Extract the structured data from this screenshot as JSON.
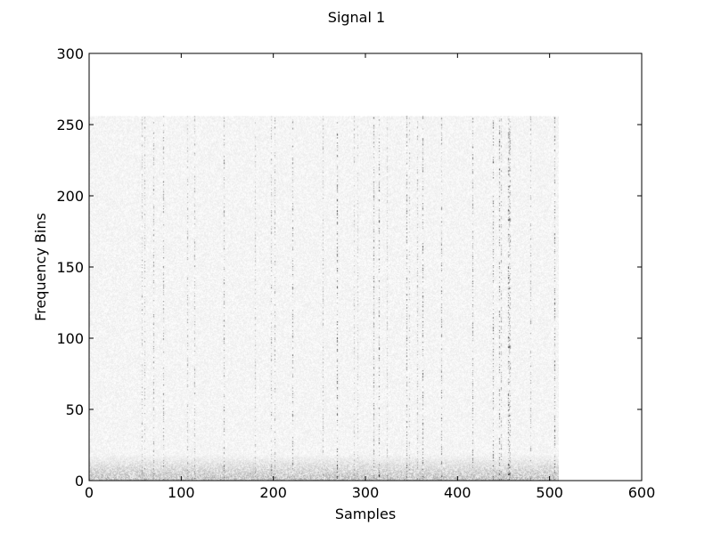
{
  "chart_data": {
    "type": "heatmap",
    "title": "Signal 1",
    "xlabel": "Samples",
    "ylabel": "Frequency Bins",
    "xlim": [
      0,
      600
    ],
    "ylim": [
      0,
      300
    ],
    "xticks": [
      0,
      100,
      200,
      300,
      400,
      500,
      600
    ],
    "yticks": [
      0,
      50,
      100,
      150,
      200,
      250,
      300
    ],
    "data_extent": {
      "x": [
        0,
        510
      ],
      "y": [
        0,
        256
      ]
    },
    "colormap": "grayscale-reversed",
    "grid": false,
    "legend": "none",
    "colors": {
      "background": "#ffffff",
      "axes": "#000000",
      "mark": "#000000"
    }
  }
}
